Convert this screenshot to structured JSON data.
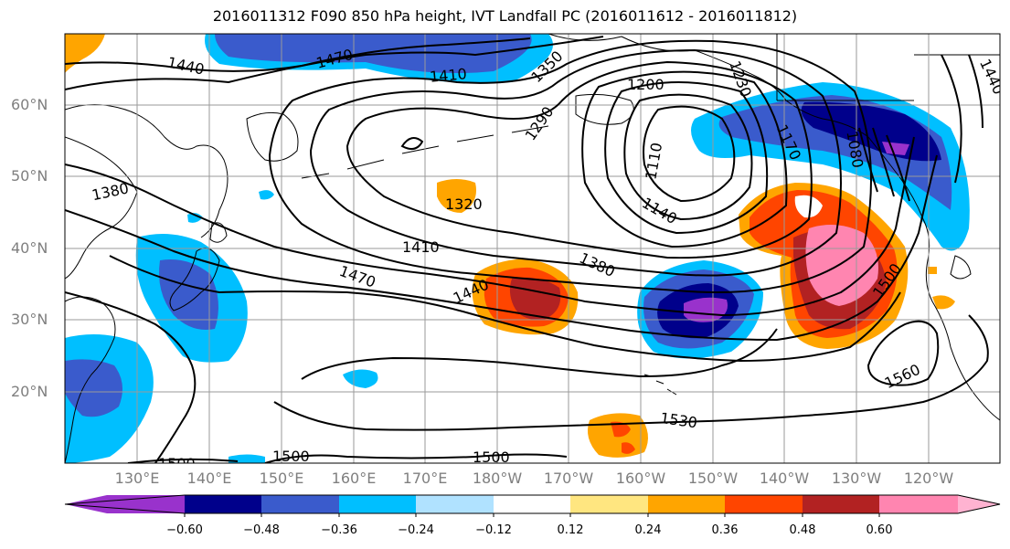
{
  "title": "2016011312 F090 850 hPa height, IVT Landfall PC (2016011612 - 2016011812)",
  "map": {
    "lat_labels": [
      "60°N",
      "50°N",
      "40°N",
      "30°N",
      "20°N"
    ],
    "lon_labels": [
      "130°E",
      "140°E",
      "150°E",
      "160°E",
      "170°E",
      "180°W",
      "170°W",
      "160°W",
      "150°W",
      "140°W",
      "130°W",
      "120°W"
    ],
    "contour_labels": [
      "1440",
      "1470",
      "1410",
      "1350",
      "1200",
      "1230",
      "1290",
      "1380",
      "1320",
      "1110",
      "1170",
      "1080",
      "1140",
      "1410",
      "1470",
      "1440",
      "1380",
      "1500",
      "1560",
      "1530",
      "1500",
      "1500",
      "1500",
      "1440"
    ],
    "shading_variable": "IVT Landfall PC",
    "contour_variable": "850 hPa height"
  },
  "colorbar": {
    "ticks": [
      "−0.60",
      "−0.48",
      "−0.36",
      "−0.24",
      "−0.12",
      "0.12",
      "0.24",
      "0.36",
      "0.48",
      "0.60"
    ],
    "colors": [
      "#9932CC",
      "#00008B",
      "#3A5BCC",
      "#00BFFF",
      "#B0E2FF",
      "#FFFFFF",
      "#FFE680",
      "#FFA500",
      "#FF4500",
      "#B22222",
      "#FF85B0",
      "#FFB3D1"
    ]
  }
}
